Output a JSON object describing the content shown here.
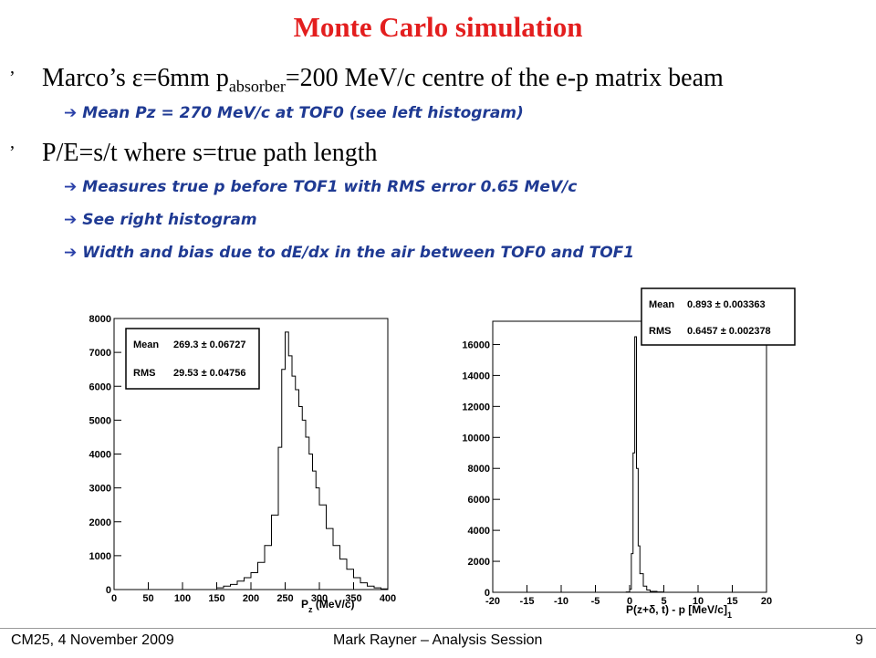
{
  "title": "Monte Carlo simulation",
  "bullets": [
    {
      "marker": "’",
      "pre": "Marco’s ε=6mm p",
      "sub": "absorber",
      "post": "=200 MeV/c centre of the e-p matrix beam"
    },
    {
      "marker": "’",
      "text": "P/E=s/t where s=true path length"
    }
  ],
  "subbullets": [
    "Mean Pz = 270 MeV/c at TOF0 (see left histogram)",
    "Measures true p before TOF1 with RMS error 0.65 MeV/c",
    "See right histogram",
    "Width and bias due to dE/dx in the air between TOF0 and TOF1"
  ],
  "arrow_glyph": "➔",
  "left_hist": {
    "stats": {
      "mean_label": "Mean",
      "mean_value": "269.3 ± 0.06727",
      "rms_label": "RMS",
      "rms_value": "29.53 ± 0.04756"
    },
    "xlabel_main": "P",
    "xlabel_sub": "z",
    "xlabel_units": " (MeV/c)"
  },
  "right_hist": {
    "stats": {
      "mean_label": "Mean",
      "mean_value": "0.893 ± 0.003363",
      "rms_label": "RMS",
      "rms_value": "0.6457 ± 0.002378"
    },
    "xlabel": "P(z+δ, t) - p  [MeV/c]",
    "xlabel_sub": "1"
  },
  "footer": {
    "left": "CM25, 4 November 2009",
    "center": "Mark Rayner – Analysis Session",
    "page": "9"
  },
  "chart_data": [
    {
      "type": "bar",
      "xlim": [
        0,
        400
      ],
      "ylim": [
        0,
        8000
      ],
      "xticks": [
        0,
        50,
        100,
        150,
        200,
        250,
        300,
        350,
        400
      ],
      "yticks": [
        0,
        1000,
        2000,
        3000,
        4000,
        5000,
        6000,
        7000,
        8000
      ],
      "x": [
        0,
        10,
        20,
        30,
        40,
        50,
        60,
        70,
        80,
        90,
        100,
        110,
        120,
        130,
        140,
        150,
        160,
        170,
        180,
        190,
        200,
        210,
        220,
        230,
        240,
        245,
        250,
        255,
        260,
        265,
        270,
        275,
        280,
        285,
        290,
        295,
        300,
        310,
        320,
        330,
        340,
        350,
        360,
        370,
        380,
        390,
        400
      ],
      "values": [
        0,
        0,
        0,
        0,
        0,
        0,
        0,
        0,
        0,
        0,
        0,
        0,
        0,
        0,
        0,
        50,
        100,
        150,
        250,
        350,
        500,
        800,
        1300,
        2200,
        4200,
        6500,
        7600,
        6900,
        6300,
        5900,
        5400,
        5000,
        4500,
        4000,
        3500,
        3000,
        2500,
        1800,
        1300,
        900,
        600,
        350,
        200,
        100,
        50,
        20,
        0
      ]
    },
    {
      "type": "bar",
      "xlim": [
        -20,
        20
      ],
      "ylim": [
        0,
        17500
      ],
      "xticks": [
        -20,
        -15,
        -10,
        -5,
        0,
        5,
        10,
        15,
        20
      ],
      "yticks": [
        0,
        2000,
        4000,
        6000,
        8000,
        10000,
        12000,
        14000,
        16000
      ],
      "x": [
        -1,
        -0.5,
        0,
        0.25,
        0.5,
        0.75,
        1,
        1.25,
        1.5,
        2,
        2.5,
        3,
        4,
        5
      ],
      "values": [
        0,
        20,
        200,
        2500,
        9000,
        16500,
        8000,
        3000,
        1200,
        400,
        150,
        60,
        20,
        0
      ]
    }
  ]
}
